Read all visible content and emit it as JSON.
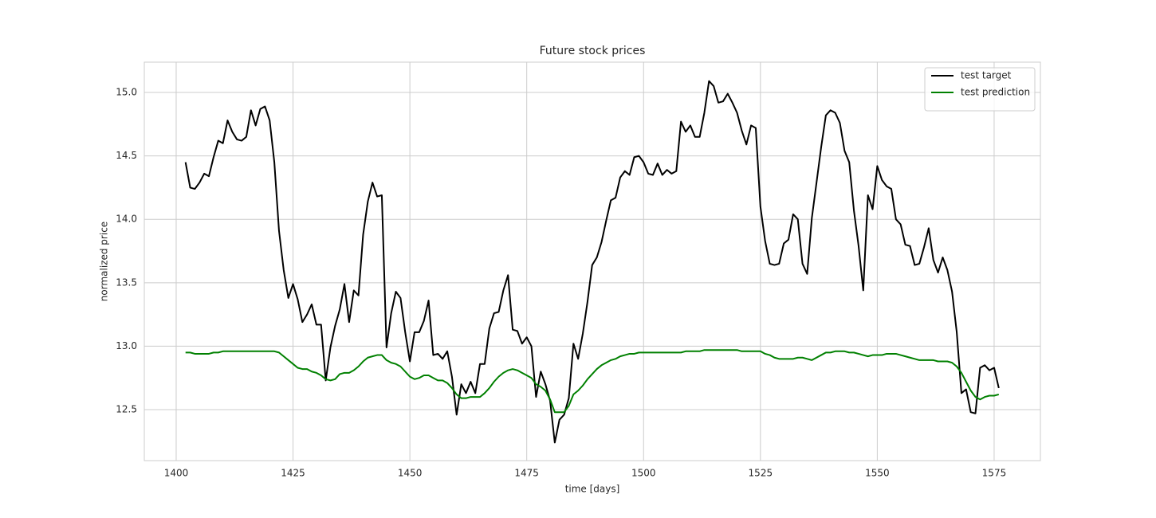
{
  "chart_data": {
    "type": "line",
    "title": "Future stock prices",
    "xlabel": "time [days]",
    "ylabel": "normalized price",
    "x": [
      1402,
      1403,
      1404,
      1405,
      1406,
      1407,
      1408,
      1409,
      1410,
      1411,
      1412,
      1413,
      1414,
      1415,
      1416,
      1417,
      1418,
      1419,
      1420,
      1421,
      1422,
      1423,
      1424,
      1425,
      1426,
      1427,
      1428,
      1429,
      1430,
      1431,
      1432,
      1433,
      1434,
      1435,
      1436,
      1437,
      1438,
      1439,
      1440,
      1441,
      1442,
      1443,
      1444,
      1445,
      1446,
      1447,
      1448,
      1449,
      1450,
      1451,
      1452,
      1453,
      1454,
      1455,
      1456,
      1457,
      1458,
      1459,
      1460,
      1461,
      1462,
      1463,
      1464,
      1465,
      1466,
      1467,
      1468,
      1469,
      1470,
      1471,
      1472,
      1473,
      1474,
      1475,
      1476,
      1477,
      1478,
      1479,
      1480,
      1481,
      1482,
      1483,
      1484,
      1485,
      1486,
      1487,
      1488,
      1489,
      1490,
      1491,
      1492,
      1493,
      1494,
      1495,
      1496,
      1497,
      1498,
      1499,
      1500,
      1501,
      1502,
      1503,
      1504,
      1505,
      1506,
      1507,
      1508,
      1509,
      1510,
      1511,
      1512,
      1513,
      1514,
      1515,
      1516,
      1517,
      1518,
      1519,
      1520,
      1521,
      1522,
      1523,
      1524,
      1525,
      1526,
      1527,
      1528,
      1529,
      1530,
      1531,
      1532,
      1533,
      1534,
      1535,
      1536,
      1537,
      1538,
      1539,
      1540,
      1541,
      1542,
      1543,
      1544,
      1545,
      1546,
      1547,
      1548,
      1549,
      1550,
      1551,
      1552,
      1553,
      1554,
      1555,
      1556,
      1557,
      1558,
      1559,
      1560,
      1561,
      1562,
      1563,
      1564,
      1565,
      1566,
      1567,
      1568,
      1569,
      1570,
      1571,
      1572,
      1573,
      1574,
      1575,
      1576
    ],
    "series": [
      {
        "name": "test target",
        "color": "#000000",
        "values": [
          14.45,
          14.25,
          14.24,
          14.29,
          14.36,
          14.34,
          14.49,
          14.62,
          14.6,
          14.78,
          14.69,
          14.63,
          14.62,
          14.65,
          14.86,
          14.74,
          14.87,
          14.89,
          14.78,
          14.45,
          13.91,
          13.6,
          13.38,
          13.49,
          13.37,
          13.19,
          13.25,
          13.33,
          13.17,
          13.17,
          12.73,
          12.99,
          13.16,
          13.29,
          13.49,
          13.19,
          13.44,
          13.4,
          13.88,
          14.14,
          14.29,
          14.18,
          14.19,
          12.99,
          13.26,
          13.43,
          13.38,
          13.11,
          12.88,
          13.11,
          13.11,
          13.2,
          13.36,
          12.93,
          12.94,
          12.9,
          12.96,
          12.76,
          12.46,
          12.7,
          12.63,
          12.72,
          12.63,
          12.86,
          12.86,
          13.14,
          13.26,
          13.27,
          13.44,
          13.56,
          13.13,
          13.12,
          13.02,
          13.07,
          13.0,
          12.6,
          12.8,
          12.7,
          12.57,
          12.24,
          12.42,
          12.46,
          12.59,
          13.02,
          12.9,
          13.1,
          13.35,
          13.64,
          13.7,
          13.82,
          13.99,
          14.15,
          14.17,
          14.33,
          14.38,
          14.35,
          14.49,
          14.5,
          14.45,
          14.36,
          14.35,
          14.44,
          14.35,
          14.39,
          14.36,
          14.38,
          14.77,
          14.69,
          14.74,
          14.65,
          14.65,
          14.84,
          15.09,
          15.05,
          14.92,
          14.93,
          14.99,
          14.92,
          14.84,
          14.7,
          14.59,
          14.74,
          14.72,
          14.1,
          13.83,
          13.65,
          13.64,
          13.65,
          13.81,
          13.84,
          14.04,
          14.0,
          13.65,
          13.57,
          14.01,
          14.29,
          14.57,
          14.82,
          14.86,
          14.84,
          14.76,
          14.54,
          14.45,
          14.07,
          13.79,
          13.44,
          14.19,
          14.08,
          14.42,
          14.31,
          14.26,
          14.24,
          14.0,
          13.96,
          13.8,
          13.79,
          13.64,
          13.65,
          13.78,
          13.93,
          13.68,
          13.58,
          13.7,
          13.6,
          13.43,
          13.11,
          12.63,
          12.66,
          12.48,
          12.47,
          12.83,
          12.85,
          12.81,
          12.83,
          12.67
        ]
      },
      {
        "name": "test prediction",
        "color": "#008000",
        "values": [
          12.95,
          12.95,
          12.94,
          12.94,
          12.94,
          12.94,
          12.95,
          12.95,
          12.96,
          12.96,
          12.96,
          12.96,
          12.96,
          12.96,
          12.96,
          12.96,
          12.96,
          12.96,
          12.96,
          12.96,
          12.95,
          12.92,
          12.89,
          12.86,
          12.83,
          12.82,
          12.82,
          12.8,
          12.79,
          12.77,
          12.74,
          12.73,
          12.74,
          12.78,
          12.79,
          12.79,
          12.81,
          12.84,
          12.88,
          12.91,
          12.92,
          12.93,
          12.93,
          12.89,
          12.87,
          12.86,
          12.84,
          12.8,
          12.76,
          12.74,
          12.75,
          12.77,
          12.77,
          12.75,
          12.73,
          12.73,
          12.71,
          12.67,
          12.62,
          12.59,
          12.59,
          12.6,
          12.6,
          12.6,
          12.63,
          12.67,
          12.72,
          12.76,
          12.79,
          12.81,
          12.82,
          12.81,
          12.79,
          12.77,
          12.75,
          12.7,
          12.68,
          12.65,
          12.58,
          12.48,
          12.48,
          12.48,
          12.53,
          12.62,
          12.65,
          12.69,
          12.74,
          12.78,
          12.82,
          12.85,
          12.87,
          12.89,
          12.9,
          12.92,
          12.93,
          12.94,
          12.94,
          12.95,
          12.95,
          12.95,
          12.95,
          12.95,
          12.95,
          12.95,
          12.95,
          12.95,
          12.95,
          12.96,
          12.96,
          12.96,
          12.96,
          12.97,
          12.97,
          12.97,
          12.97,
          12.97,
          12.97,
          12.97,
          12.97,
          12.96,
          12.96,
          12.96,
          12.96,
          12.96,
          12.94,
          12.93,
          12.91,
          12.9,
          12.9,
          12.9,
          12.9,
          12.91,
          12.91,
          12.9,
          12.89,
          12.91,
          12.93,
          12.95,
          12.95,
          12.96,
          12.96,
          12.96,
          12.95,
          12.95,
          12.94,
          12.93,
          12.92,
          12.93,
          12.93,
          12.93,
          12.94,
          12.94,
          12.94,
          12.93,
          12.92,
          12.91,
          12.9,
          12.89,
          12.89,
          12.89,
          12.89,
          12.88,
          12.88,
          12.88,
          12.87,
          12.84,
          12.79,
          12.72,
          12.65,
          12.6,
          12.58,
          12.6,
          12.61,
          12.61,
          12.62
        ]
      }
    ],
    "xlim": [
      1393.18,
      1584.9
    ],
    "ylim": [
      12.098,
      15.239
    ],
    "xticks": [
      1400,
      1425,
      1450,
      1475,
      1500,
      1525,
      1550,
      1575
    ],
    "yticks": [
      12.5,
      {
        "value": 13,
        "label": "13.0"
      },
      13.5,
      {
        "value": 14,
        "label": "14.0"
      },
      14.5,
      {
        "value": 15,
        "label": "15.0"
      }
    ],
    "grid": true,
    "legend": "upper right"
  }
}
